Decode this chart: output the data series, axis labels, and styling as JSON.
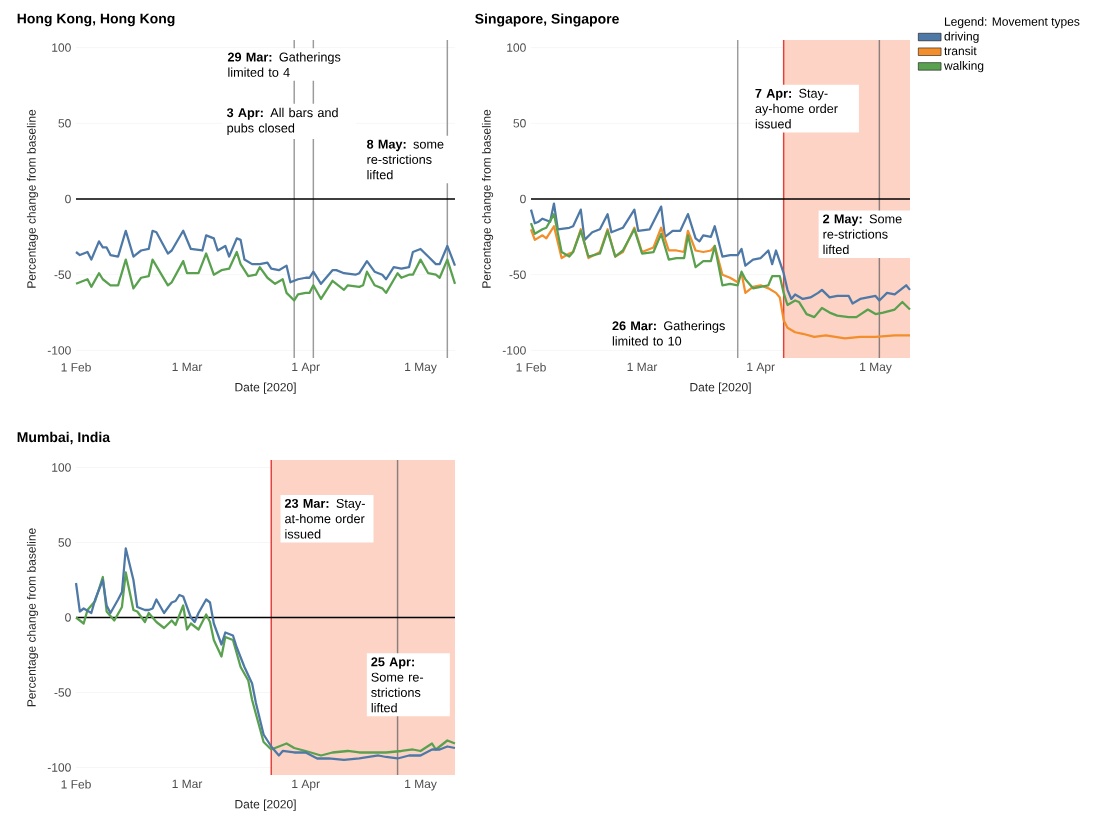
{
  "chart_data": [
    {
      "type": "line",
      "title": "Hong Kong, Hong Kong",
      "xlabel": "Date [2020]",
      "ylabel": "Percentage change from baseline",
      "xlim": [
        "2020-02-01",
        "2020-05-10"
      ],
      "ylim": [
        -105,
        105
      ],
      "xticks": [
        {
          "value": "2020-02-01",
          "label": "1 Feb"
        },
        {
          "value": "2020-03-01",
          "label": "1 Mar"
        },
        {
          "value": "2020-04-01",
          "label": "1 Apr"
        },
        {
          "value": "2020-05-01",
          "label": "1 May"
        }
      ],
      "yticks": [
        -100,
        -50,
        0,
        50,
        100
      ],
      "grid": "y",
      "series": [
        {
          "color": "#4e79a7",
          "x": [
            "2020-02-01",
            "2020-02-02",
            "2020-02-04",
            "2020-02-05",
            "2020-02-07",
            "2020-02-08",
            "2020-02-09",
            "2020-02-10",
            "2020-02-12",
            "2020-02-14",
            "2020-02-16",
            "2020-02-18",
            "2020-02-20",
            "2020-02-21",
            "2020-02-22",
            "2020-02-25",
            "2020-02-26",
            "2020-02-29",
            "2020-03-02",
            "2020-03-05",
            "2020-03-06",
            "2020-03-08",
            "2020-03-09",
            "2020-03-11",
            "2020-03-12",
            "2020-03-14",
            "2020-03-15",
            "2020-03-16",
            "2020-03-18",
            "2020-03-20",
            "2020-03-22",
            "2020-03-23",
            "2020-03-25",
            "2020-03-27",
            "2020-03-28",
            "2020-03-30",
            "2020-04-01",
            "2020-04-02",
            "2020-04-03",
            "2020-04-05",
            "2020-04-08",
            "2020-04-09",
            "2020-04-11",
            "2020-04-14",
            "2020-04-15",
            "2020-04-17",
            "2020-04-19",
            "2020-04-21",
            "2020-04-22",
            "2020-04-24",
            "2020-04-26",
            "2020-04-28",
            "2020-04-29",
            "2020-05-01",
            "2020-05-03",
            "2020-05-05",
            "2020-05-06",
            "2020-05-08",
            "2020-05-10"
          ],
          "values": [
            -35,
            -37,
            -35,
            -40,
            -28,
            -32,
            -32,
            -37,
            -38,
            -21,
            -38,
            -34,
            -33,
            -21,
            -22,
            -36,
            -34,
            -21,
            -33,
            -34,
            -24,
            -26,
            -34,
            -31,
            -38,
            -26,
            -27,
            -40,
            -43,
            -43,
            -42,
            -46,
            -47,
            -44,
            -55,
            -53,
            -52,
            -52,
            -48,
            -56,
            -47,
            -47,
            -49,
            -50,
            -49,
            -41,
            -48,
            -50,
            -53,
            -45,
            -46,
            -45,
            -35,
            -33,
            -38,
            -43,
            -43,
            -31,
            -44
          ]
        },
        {
          "color": "#59a14f",
          "x": [
            "2020-02-01",
            "2020-02-04",
            "2020-02-05",
            "2020-02-07",
            "2020-02-08",
            "2020-02-10",
            "2020-02-12",
            "2020-02-14",
            "2020-02-16",
            "2020-02-18",
            "2020-02-20",
            "2020-02-21",
            "2020-02-25",
            "2020-02-26",
            "2020-02-29",
            "2020-03-01",
            "2020-03-04",
            "2020-03-06",
            "2020-03-08",
            "2020-03-10",
            "2020-03-12",
            "2020-03-14",
            "2020-03-15",
            "2020-03-17",
            "2020-03-19",
            "2020-03-20",
            "2020-03-22",
            "2020-03-24",
            "2020-03-26",
            "2020-03-27",
            "2020-03-29",
            "2020-03-30",
            "2020-04-01",
            "2020-04-02",
            "2020-04-03",
            "2020-04-05",
            "2020-04-08",
            "2020-04-09",
            "2020-04-11",
            "2020-04-12",
            "2020-04-15",
            "2020-04-16",
            "2020-04-17",
            "2020-04-19",
            "2020-04-21",
            "2020-04-22",
            "2020-04-25",
            "2020-04-26",
            "2020-04-28",
            "2020-04-29",
            "2020-05-01",
            "2020-05-03",
            "2020-05-05",
            "2020-05-06",
            "2020-05-08",
            "2020-05-10"
          ],
          "values": [
            -56,
            -53,
            -58,
            -49,
            -53,
            -57,
            -57,
            -40,
            -59,
            -52,
            -51,
            -40,
            -57,
            -55,
            -41,
            -49,
            -49,
            -36,
            -50,
            -47,
            -46,
            -35,
            -43,
            -51,
            -50,
            -45,
            -52,
            -56,
            -53,
            -62,
            -67,
            -63,
            -62,
            -62,
            -57,
            -66,
            -54,
            -56,
            -60,
            -57,
            -58,
            -57,
            -48,
            -57,
            -59,
            -62,
            -49,
            -52,
            -50,
            -50,
            -40,
            -49,
            -50,
            -52,
            -40,
            -56
          ]
        }
      ],
      "ref_lines": [
        {
          "axis": "x",
          "value": "2020-03-29",
          "label": "**29 Mar:** Gatherings limited to 4",
          "color": "#9b9b9b"
        },
        {
          "axis": "x",
          "value": "2020-04-03",
          "label": "**3 Apr:** All bars and pubs closed",
          "color": "#9b9b9b"
        },
        {
          "axis": "x",
          "value": "2020-05-08",
          "label": "**8 May:** some re-strictions lifted",
          "color": "#9b9b9b"
        },
        {
          "axis": "y",
          "value": 0,
          "color": "#000000"
        }
      ]
    },
    {
      "type": "line",
      "title": "Singapore, Singapore",
      "xlabel": "Date [2020]",
      "ylabel": "Percentage change from baseline",
      "xlim": [
        "2020-02-01",
        "2020-05-10"
      ],
      "ylim": [
        -105,
        105
      ],
      "xticks": [
        {
          "value": "2020-02-01",
          "label": "1 Feb"
        },
        {
          "value": "2020-03-01",
          "label": "1 Mar"
        },
        {
          "value": "2020-04-01",
          "label": "1 Apr"
        },
        {
          "value": "2020-05-01",
          "label": "1 May"
        }
      ],
      "yticks": [
        -100,
        -50,
        0,
        50,
        100
      ],
      "grid": "y",
      "legend": "top right",
      "legend_title": "Legend: Movement types",
      "series": [
        {
          "name": "driving",
          "color": "#4e79a7",
          "x": [
            "2020-02-01",
            "2020-02-02",
            "2020-02-03",
            "2020-02-04",
            "2020-02-06",
            "2020-02-07",
            "2020-02-08",
            "2020-02-11",
            "2020-02-12",
            "2020-02-14",
            "2020-02-15",
            "2020-02-17",
            "2020-02-19",
            "2020-02-21",
            "2020-02-22",
            "2020-02-25",
            "2020-02-28",
            "2020-02-29",
            "2020-03-03",
            "2020-03-06",
            "2020-03-07",
            "2020-03-09",
            "2020-03-11",
            "2020-03-13",
            "2020-03-15",
            "2020-03-16",
            "2020-03-17",
            "2020-03-19",
            "2020-03-20",
            "2020-03-22",
            "2020-03-24",
            "2020-03-26",
            "2020-03-27",
            "2020-03-28",
            "2020-03-30",
            "2020-04-01",
            "2020-04-03",
            "2020-04-04",
            "2020-04-05",
            "2020-04-07",
            "2020-04-08",
            "2020-04-09",
            "2020-04-10",
            "2020-04-12",
            "2020-04-14",
            "2020-04-16",
            "2020-04-17",
            "2020-04-19",
            "2020-04-21",
            "2020-04-24",
            "2020-04-25",
            "2020-04-27",
            "2020-04-29",
            "2020-05-01",
            "2020-05-02",
            "2020-05-04",
            "2020-05-06",
            "2020-05-08",
            "2020-05-09",
            "2020-05-10"
          ],
          "values": [
            -7,
            -16,
            -15,
            -13,
            -15,
            -3,
            -20,
            -19,
            -18,
            -7,
            -27,
            -22,
            -20,
            -10,
            -22,
            -19,
            -7,
            -21,
            -20,
            -5,
            -25,
            -21,
            -21,
            -10,
            -26,
            -28,
            -24,
            -25,
            -18,
            -38,
            -37,
            -37,
            -33,
            -44,
            -40,
            -39,
            -34,
            -43,
            -34,
            -49,
            -60,
            -66,
            -63,
            -66,
            -65,
            -62,
            -60,
            -65,
            -64,
            -64,
            -69,
            -66,
            -65,
            -64,
            -67,
            -62,
            -63,
            -59,
            -57,
            -60
          ]
        },
        {
          "name": "transit",
          "color": "#f28e2b",
          "x": [
            "2020-02-01",
            "2020-02-02",
            "2020-02-04",
            "2020-02-05",
            "2020-02-07",
            "2020-02-09",
            "2020-02-11",
            "2020-02-12",
            "2020-02-14",
            "2020-02-16",
            "2020-02-19",
            "2020-02-21",
            "2020-02-23",
            "2020-02-25",
            "2020-02-28",
            "2020-03-01",
            "2020-03-04",
            "2020-03-06",
            "2020-03-08",
            "2020-03-10",
            "2020-03-12",
            "2020-03-13",
            "2020-03-15",
            "2020-03-17",
            "2020-03-19",
            "2020-03-20",
            "2020-03-22",
            "2020-03-24",
            "2020-03-26",
            "2020-03-27",
            "2020-03-28",
            "2020-03-30",
            "2020-04-01",
            "2020-04-03",
            "2020-04-05",
            "2020-04-06",
            "2020-04-07",
            "2020-04-08",
            "2020-04-10",
            "2020-04-12",
            "2020-04-15",
            "2020-04-18",
            "2020-04-23",
            "2020-04-27",
            "2020-05-01",
            "2020-05-06",
            "2020-05-10"
          ],
          "values": [
            -20,
            -27,
            -24,
            -26,
            -18,
            -39,
            -36,
            -35,
            -20,
            -39,
            -35,
            -20,
            -38,
            -35,
            -19,
            -35,
            -32,
            -19,
            -34,
            -34,
            -35,
            -21,
            -34,
            -35,
            -34,
            -31,
            -50,
            -52,
            -55,
            -49,
            -62,
            -58,
            -57,
            -59,
            -62,
            -65,
            -80,
            -85,
            -88,
            -89,
            -91,
            -90,
            -92,
            -91,
            -91,
            -90,
            -90
          ]
        },
        {
          "name": "walking",
          "color": "#59a14f",
          "x": [
            "2020-02-01",
            "2020-02-02",
            "2020-02-04",
            "2020-02-05",
            "2020-02-07",
            "2020-02-09",
            "2020-02-11",
            "2020-02-12",
            "2020-02-14",
            "2020-02-16",
            "2020-02-19",
            "2020-02-21",
            "2020-02-23",
            "2020-02-25",
            "2020-02-28",
            "2020-03-01",
            "2020-03-04",
            "2020-03-06",
            "2020-03-08",
            "2020-03-10",
            "2020-03-12",
            "2020-03-13",
            "2020-03-15",
            "2020-03-17",
            "2020-03-19",
            "2020-03-20",
            "2020-03-22",
            "2020-03-24",
            "2020-03-26",
            "2020-03-27",
            "2020-03-28",
            "2020-03-30",
            "2020-04-01",
            "2020-04-03",
            "2020-04-04",
            "2020-04-06",
            "2020-04-07",
            "2020-04-08",
            "2020-04-10",
            "2020-04-11",
            "2020-04-13",
            "2020-04-15",
            "2020-04-17",
            "2020-04-19",
            "2020-04-21",
            "2020-04-24",
            "2020-04-26",
            "2020-04-29",
            "2020-05-01",
            "2020-05-03",
            "2020-05-06",
            "2020-05-08",
            "2020-05-10"
          ],
          "values": [
            -16,
            -23,
            -20,
            -19,
            -10,
            -35,
            -38,
            -35,
            -21,
            -38,
            -36,
            -21,
            -38,
            -34,
            -20,
            -36,
            -35,
            -23,
            -40,
            -39,
            -39,
            -24,
            -45,
            -41,
            -41,
            -31,
            -57,
            -56,
            -57,
            -48,
            -53,
            -59,
            -58,
            -57,
            -51,
            -51,
            -62,
            -70,
            -67,
            -68,
            -76,
            -78,
            -72,
            -75,
            -77,
            -78,
            -78,
            -73,
            -76,
            -75,
            -73,
            -68,
            -73
          ]
        }
      ],
      "bands": [
        {
          "axis": "x",
          "from": "2020-04-07",
          "to": "2020-05-10",
          "color": "#fdd3c5"
        }
      ],
      "ref_lines": [
        {
          "axis": "x",
          "value": "2020-03-26",
          "label": "**26 Mar:** Gatherings limited to 10",
          "color": "#9b9b9b"
        },
        {
          "axis": "x",
          "value": "2020-04-07",
          "label": "**7 Apr:** Stay-ay-home order issued",
          "color": "#e3403a"
        },
        {
          "axis": "x",
          "value": "2020-05-02",
          "label": "**2 May:** Some re-strictions lifted",
          "color": "#8a7f7c"
        },
        {
          "axis": "y",
          "value": 0,
          "color": "#000000"
        }
      ]
    },
    {
      "type": "line",
      "title": "Mumbai, India",
      "xlabel": "Date [2020]",
      "ylabel": "Percentage change from baseline",
      "xlim": [
        "2020-02-01",
        "2020-05-10"
      ],
      "ylim": [
        -105,
        105
      ],
      "xticks": [
        {
          "value": "2020-02-01",
          "label": "1 Feb"
        },
        {
          "value": "2020-03-01",
          "label": "1 Mar"
        },
        {
          "value": "2020-04-01",
          "label": "1 Apr"
        },
        {
          "value": "2020-05-01",
          "label": "1 May"
        }
      ],
      "yticks": [
        -100,
        -50,
        0,
        50,
        100
      ],
      "grid": "y",
      "series": [
        {
          "color": "#59a14f",
          "x": [
            "2020-02-01",
            "2020-02-03",
            "2020-02-04",
            "2020-02-06",
            "2020-02-08",
            "2020-02-09",
            "2020-02-11",
            "2020-02-13",
            "2020-02-14",
            "2020-02-16",
            "2020-02-17",
            "2020-02-19",
            "2020-02-20",
            "2020-02-22",
            "2020-02-24",
            "2020-02-26",
            "2020-02-27",
            "2020-02-29",
            "2020-03-01",
            "2020-03-02",
            "2020-03-04",
            "2020-03-06",
            "2020-03-07",
            "2020-03-08",
            "2020-03-10",
            "2020-03-11",
            "2020-03-13",
            "2020-03-15",
            "2020-03-17",
            "2020-03-18",
            "2020-03-21",
            "2020-03-23",
            "2020-03-25",
            "2020-03-27",
            "2020-03-29",
            "2020-04-01",
            "2020-04-05",
            "2020-04-08",
            "2020-04-12",
            "2020-04-15",
            "2020-04-19",
            "2020-04-22",
            "2020-04-26",
            "2020-04-29",
            "2020-05-01",
            "2020-05-04",
            "2020-05-05",
            "2020-05-08",
            "2020-05-10"
          ],
          "values": [
            0,
            -4,
            5,
            11,
            27,
            4,
            -2,
            7,
            30,
            5,
            4,
            -3,
            3,
            -3,
            -7,
            -2,
            -5,
            8,
            -8,
            -4,
            -8,
            2,
            -3,
            -15,
            -26,
            -13,
            -15,
            -33,
            -42,
            -55,
            -83,
            -88,
            -86,
            -84,
            -87,
            -89,
            -92,
            -90,
            -89,
            -90,
            -90,
            -90,
            -89,
            -88,
            -89,
            -84,
            -88,
            -82,
            -84
          ]
        },
        {
          "color": "#4e79a7",
          "x": [
            "2020-02-01",
            "2020-02-02",
            "2020-02-03",
            "2020-02-05",
            "2020-02-06",
            "2020-02-08",
            "2020-02-09",
            "2020-02-10",
            "2020-02-12",
            "2020-02-13",
            "2020-02-14",
            "2020-02-16",
            "2020-02-17",
            "2020-02-19",
            "2020-02-20",
            "2020-02-21",
            "2020-02-22",
            "2020-02-24",
            "2020-02-26",
            "2020-02-27",
            "2020-02-28",
            "2020-02-29",
            "2020-03-02",
            "2020-03-03",
            "2020-03-04",
            "2020-03-06",
            "2020-03-07",
            "2020-03-08",
            "2020-03-10",
            "2020-03-11",
            "2020-03-13",
            "2020-03-14",
            "2020-03-16",
            "2020-03-18",
            "2020-03-19",
            "2020-03-21",
            "2020-03-23",
            "2020-03-25",
            "2020-03-26",
            "2020-03-29",
            "2020-04-01",
            "2020-04-04",
            "2020-04-07",
            "2020-04-11",
            "2020-04-15",
            "2020-04-20",
            "2020-04-22",
            "2020-04-25",
            "2020-04-28",
            "2020-05-01",
            "2020-05-04",
            "2020-05-06",
            "2020-05-08",
            "2020-05-10"
          ],
          "values": [
            23,
            4,
            6,
            3,
            12,
            25,
            8,
            3,
            12,
            17,
            46,
            25,
            7,
            5,
            5,
            6,
            12,
            3,
            10,
            11,
            15,
            14,
            0,
            -3,
            3,
            12,
            10,
            -4,
            -18,
            -10,
            -12,
            -20,
            -33,
            -44,
            -57,
            -78,
            -86,
            -92,
            -89,
            -90,
            -90,
            -94,
            -94,
            -95,
            -94,
            -92,
            -93,
            -94,
            -92,
            -92,
            -88,
            -88,
            -86,
            -87
          ]
        }
      ],
      "bands": [
        {
          "axis": "x",
          "from": "2020-03-23",
          "to": "2020-05-10",
          "color": "#fdd3c5"
        }
      ],
      "ref_lines": [
        {
          "axis": "x",
          "value": "2020-03-23",
          "label": "**23 Mar:** Stay-at-home order issued",
          "color": "#e3403a"
        },
        {
          "axis": "x",
          "value": "2020-04-25",
          "label": "**25 Apr:** Some re-strictions lifted",
          "color": "#8a7f7c"
        },
        {
          "axis": "y",
          "value": 0,
          "color": "#000000"
        }
      ]
    }
  ]
}
